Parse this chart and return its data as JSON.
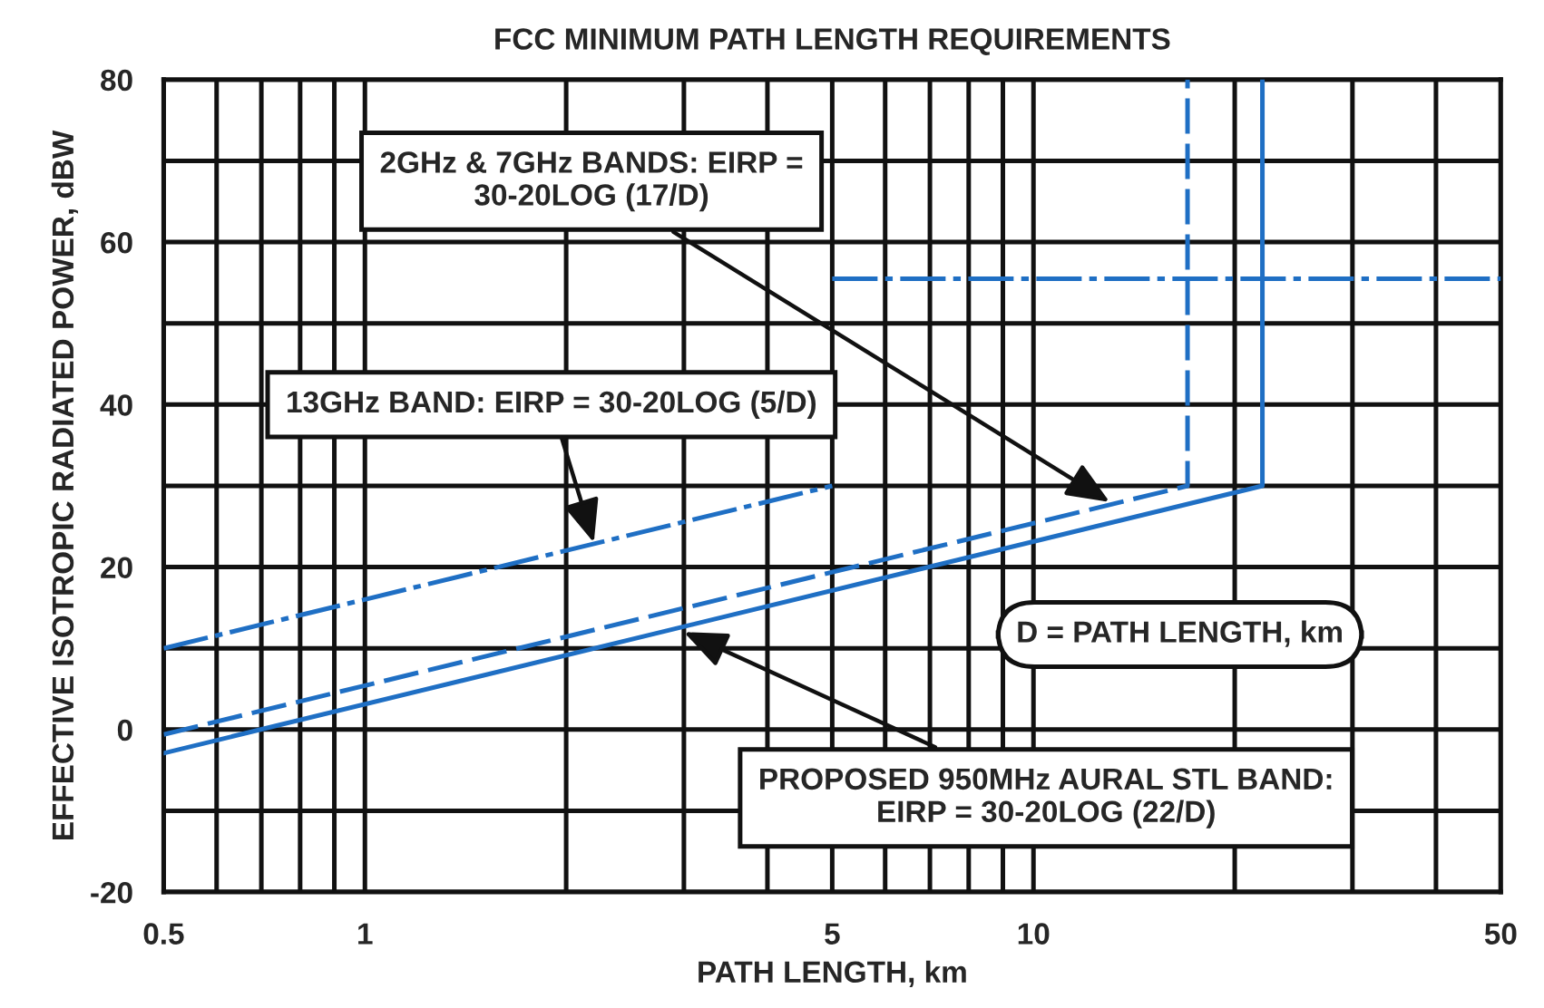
{
  "chart_data": {
    "type": "line",
    "title": "FCC MINIMUM PATH LENGTH REQUIREMENTS",
    "xlabel": "PATH LENGTH, km",
    "ylabel": "EFFECTIVE ISOTROPIC RADIATED POWER, dBW",
    "log": "x",
    "xlim": [
      0.5,
      50
    ],
    "ylim": [
      -20,
      80
    ],
    "xticks": [
      0.5,
      {
        "value": 0.6,
        "label": null
      },
      {
        "value": 0.7,
        "label": null
      },
      {
        "value": 0.8,
        "label": null
      },
      {
        "value": 0.9,
        "label": null
      },
      1,
      {
        "value": 2,
        "label": null
      },
      {
        "value": 3,
        "label": null
      },
      {
        "value": 4,
        "label": null
      },
      5,
      {
        "value": 6,
        "label": null
      },
      {
        "value": 7,
        "label": null
      },
      {
        "value": 8,
        "label": null
      },
      {
        "value": 9,
        "label": null
      },
      10,
      {
        "value": 20,
        "label": null
      },
      {
        "value": 30,
        "label": null
      },
      {
        "value": 40,
        "label": null
      },
      50
    ],
    "yticks": [
      -20,
      {
        "value": -10,
        "label": null
      },
      0,
      {
        "value": 10,
        "label": null
      },
      20,
      {
        "value": 30,
        "label": null
      },
      40,
      {
        "value": 50,
        "label": null
      },
      60,
      {
        "value": 70,
        "label": null
      },
      80
    ],
    "grid": true,
    "series": [
      {
        "color": "#1f6fc4",
        "line_style": "dashdot",
        "x": [
          0.5,
          5
        ],
        "values": [
          10,
          30
        ]
      },
      {
        "color": "#1f6fc4",
        "line_style": "dashdot",
        "x": [
          5,
          50
        ],
        "values": [
          55.5,
          55.5
        ]
      },
      {
        "color": "#1f6fc4",
        "line_style": "dashed",
        "x": [
          0.5,
          17,
          17
        ],
        "values": [
          -0.6,
          30,
          80
        ]
      },
      {
        "color": "#1f6fc4",
        "line_style": "solid",
        "x": [
          0.5,
          22,
          22
        ],
        "values": [
          -2.9,
          30,
          80
        ]
      }
    ],
    "annotations": [
      {
        "text": "2GHz & 7GHz BANDS: EIRP =\n30-20LOG (17/D)",
        "x": 13,
        "y": 28
      },
      {
        "text": "13GHz BAND: EIRP = 30-20LOG (5/D)",
        "x": 2.2,
        "y": 23
      },
      "D = PATH LENGTH, km",
      {
        "text": "PROPOSED 950MHz AURAL STL BAND:\nEIRP = 30-20LOG (22/D)",
        "x": 3,
        "y": 12
      }
    ]
  }
}
